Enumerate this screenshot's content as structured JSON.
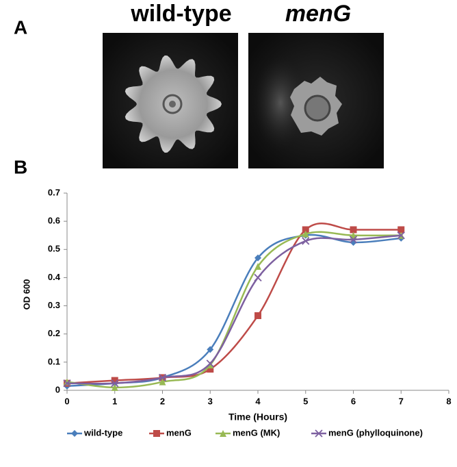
{
  "figure": {
    "panel_a": {
      "label": "A",
      "images": [
        {
          "title": "wild-type"
        },
        {
          "title": "menG"
        }
      ]
    },
    "panel_b": {
      "label": "B"
    }
  },
  "chart_data": {
    "type": "line",
    "x_label": "Time (Hours)",
    "y_label": "OD 600",
    "x": [
      0,
      1,
      2,
      3,
      4,
      5,
      6,
      7
    ],
    "series": [
      {
        "name": "wild-type",
        "color": "#4a7ebb",
        "marker": "diamond",
        "values": [
          0.015,
          0.025,
          0.045,
          0.145,
          0.47,
          0.55,
          0.525,
          0.54
        ]
      },
      {
        "name": "menG",
        "color": "#be4b48",
        "marker": "square",
        "values": [
          0.025,
          0.035,
          0.045,
          0.075,
          0.265,
          0.57,
          0.57,
          0.57
        ]
      },
      {
        "name": "menG (MK)",
        "color": "#98b954",
        "marker": "triangle",
        "values": [
          0.03,
          0.01,
          0.03,
          0.09,
          0.44,
          0.555,
          0.55,
          0.55
        ]
      },
      {
        "name": "menG (phylloquinone)",
        "color": "#7d60a0",
        "marker": "x",
        "values": [
          0.025,
          0.025,
          0.045,
          0.095,
          0.4,
          0.53,
          0.535,
          0.55
        ]
      }
    ],
    "xlim": [
      0,
      8
    ],
    "xticks": [
      0,
      1,
      2,
      3,
      4,
      5,
      6,
      7,
      8
    ],
    "ylim": [
      0,
      0.7
    ],
    "yticks": [
      0,
      0.1,
      0.2,
      0.3,
      0.4,
      0.5,
      0.6,
      0.7
    ],
    "smooth": true,
    "legend": "bottom"
  }
}
